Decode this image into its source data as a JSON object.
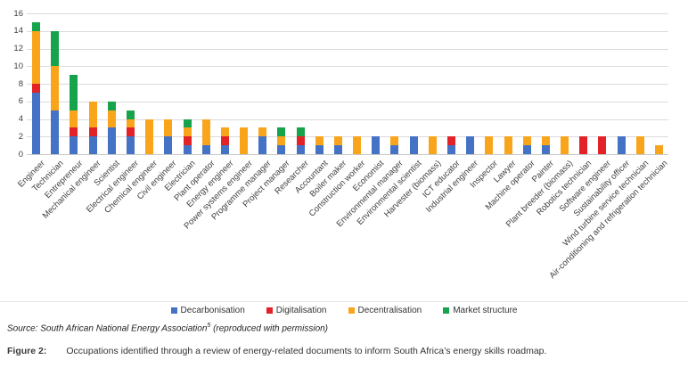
{
  "chart_data": {
    "type": "bar",
    "stacked": true,
    "title": "",
    "xlabel": "",
    "ylabel": "",
    "ylim": [
      0,
      16
    ],
    "yticks": [
      0,
      2,
      4,
      6,
      8,
      10,
      12,
      14,
      16
    ],
    "grid": true,
    "legend_position": "bottom",
    "categories": [
      "Engineer",
      "Technician",
      "Entrepreneur",
      "Mechanical engineer",
      "Scientist",
      "Electrical engineer",
      "Chemical engineer",
      "Civil engineer",
      "Electrician",
      "Plant operator",
      "Energy engineer",
      "Power systems engineer",
      "Programme manager",
      "Project manager",
      "Researcher",
      "Accountant",
      "Boiler maker",
      "Construction worker",
      "Economist",
      "Environmental manager",
      "Environmental scientist",
      "Harvester (biomass)",
      "ICT educator",
      "Industrial engineer",
      "Inspector",
      "Lawyer",
      "Machine operator",
      "Painter",
      "Plant breeder (biomass)",
      "Robotics technician",
      "Software engineer",
      "Sustainability officer",
      "Wind turbine service technician",
      "Air-conditioning and refrigeration technician"
    ],
    "series": [
      {
        "name": "Decarbonisation",
        "color": "#4472C4",
        "values": [
          7,
          5,
          2,
          2,
          3,
          2,
          0,
          2,
          1,
          1,
          1,
          0,
          2,
          1,
          1,
          1,
          1,
          0,
          2,
          1,
          2,
          0,
          1,
          2,
          0,
          0,
          1,
          1,
          0,
          0,
          0,
          2,
          0,
          0
        ]
      },
      {
        "name": "Digitalisation",
        "color": "#E32227",
        "values": [
          1,
          0,
          1,
          1,
          0,
          1,
          0,
          0,
          1,
          0,
          1,
          0,
          0,
          0,
          1,
          0,
          0,
          0,
          0,
          0,
          0,
          0,
          1,
          0,
          0,
          0,
          0,
          0,
          0,
          2,
          2,
          0,
          0,
          0
        ]
      },
      {
        "name": "Decentralisation",
        "color": "#F9A51B",
        "values": [
          6,
          5,
          2,
          3,
          2,
          1,
          4,
          2,
          1,
          3,
          1,
          3,
          1,
          1,
          0,
          1,
          1,
          2,
          0,
          1,
          0,
          2,
          0,
          0,
          2,
          2,
          1,
          1,
          2,
          0,
          0,
          0,
          2,
          1
        ]
      },
      {
        "name": "Market structure",
        "color": "#17A24C",
        "values": [
          1,
          4,
          4,
          0,
          1,
          1,
          0,
          0,
          1,
          0,
          0,
          0,
          0,
          1,
          1,
          0,
          0,
          0,
          0,
          0,
          0,
          0,
          0,
          0,
          0,
          0,
          0,
          0,
          0,
          0,
          0,
          0,
          0,
          0
        ]
      }
    ]
  },
  "source": {
    "label": "Source:",
    "text": " South African National Energy Association",
    "ref": "5",
    "suffix": " (reproduced with permission)"
  },
  "caption": {
    "label": "Figure 2:",
    "text": "Occupations identified through a review of energy-related documents to inform South Africa’s energy skills roadmap."
  }
}
